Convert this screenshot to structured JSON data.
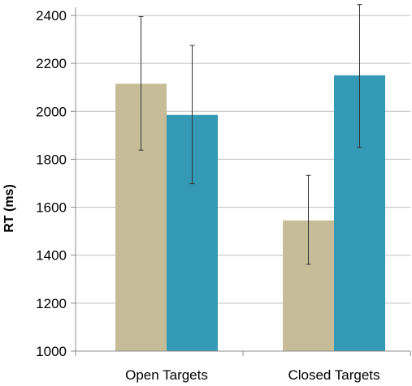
{
  "chart_data": {
    "type": "bar",
    "title": "",
    "xlabel": "",
    "ylabel": "RT (ms)",
    "ylim": [
      1000,
      2400
    ],
    "yticks": [
      1000,
      1200,
      1400,
      1600,
      1800,
      2000,
      2200,
      2400
    ],
    "grid": true,
    "legend": "none",
    "categories": [
      "Open Targets",
      "Closed Targets"
    ],
    "series": [
      {
        "color": "#c6bd98",
        "values": [
          2115,
          1545
        ],
        "error_low": [
          1838,
          1362
        ],
        "error_high": [
          2395,
          1733
        ]
      },
      {
        "color": "#3399b4",
        "values": [
          1985,
          2150
        ],
        "error_low": [
          1698,
          1850
        ],
        "error_high": [
          2275,
          2445
        ]
      }
    ],
    "colors": {
      "grid": "#bfbfbf",
      "axis": "#8c8c8c",
      "error_bar": "#333333"
    }
  }
}
